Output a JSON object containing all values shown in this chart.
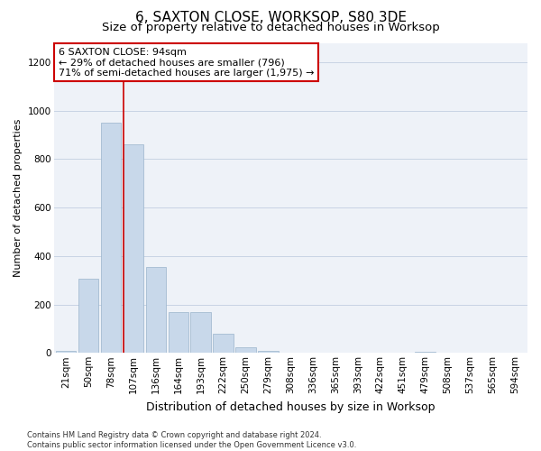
{
  "title": "6, SAXTON CLOSE, WORKSOP, S80 3DE",
  "subtitle": "Size of property relative to detached houses in Worksop",
  "xlabel": "Distribution of detached houses by size in Worksop",
  "ylabel": "Number of detached properties",
  "bar_labels": [
    "21sqm",
    "50sqm",
    "78sqm",
    "107sqm",
    "136sqm",
    "164sqm",
    "193sqm",
    "222sqm",
    "250sqm",
    "279sqm",
    "308sqm",
    "336sqm",
    "365sqm",
    "393sqm",
    "422sqm",
    "451sqm",
    "479sqm",
    "508sqm",
    "537sqm",
    "565sqm",
    "594sqm"
  ],
  "bar_values": [
    10,
    305,
    950,
    860,
    355,
    170,
    170,
    80,
    25,
    10,
    2,
    1,
    1,
    0,
    0,
    0,
    5,
    1,
    0,
    0,
    0
  ],
  "bar_color": "#c8d8ea",
  "bar_edgecolor": "#9ab4cc",
  "grid_color": "#c8d4e4",
  "bg_color": "#eef2f8",
  "annotation_text": "6 SAXTON CLOSE: 94sqm\n← 29% of detached houses are smaller (796)\n71% of semi-detached houses are larger (1,975) →",
  "annotation_box_facecolor": "#ffffff",
  "annotation_box_edgecolor": "#cc0000",
  "ylim": [
    0,
    1280
  ],
  "yticks": [
    0,
    200,
    400,
    600,
    800,
    1000,
    1200
  ],
  "footer": "Contains HM Land Registry data © Crown copyright and database right 2024.\nContains public sector information licensed under the Open Government Licence v3.0.",
  "title_fontsize": 11,
  "subtitle_fontsize": 9.5,
  "xlabel_fontsize": 9,
  "ylabel_fontsize": 8,
  "tick_fontsize": 7.5,
  "footer_fontsize": 6,
  "annot_fontsize": 8
}
